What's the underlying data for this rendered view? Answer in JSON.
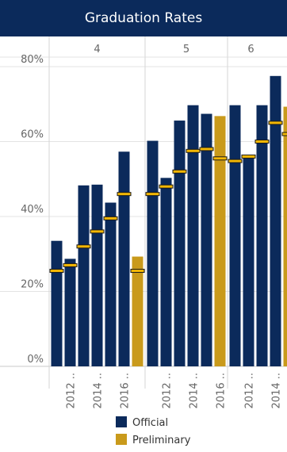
{
  "title": "Graduation Rates",
  "colors": {
    "official": "#0b2a5b",
    "preliminary": "#c99a1b",
    "marker_fill": "#f2b705",
    "grid": "#e3e3e3",
    "axis_text": "#666666"
  },
  "legend": [
    {
      "label": "Official",
      "color": "#0b2a5b"
    },
    {
      "label": "Preliminary",
      "color": "#c99a1b"
    }
  ],
  "chart_data": {
    "type": "bar",
    "title": "Graduation Rates",
    "ylim": [
      0,
      80
    ],
    "yticks": [
      {
        "value": 0,
        "label": "0%"
      },
      {
        "value": 20,
        "label": "20%"
      },
      {
        "value": 40,
        "label": "40%"
      },
      {
        "value": 60,
        "label": "60%"
      },
      {
        "value": 80,
        "label": "80%"
      }
    ],
    "groups": [
      "4",
      "5",
      "6"
    ],
    "x_tick_labels": [
      {
        "group": "4",
        "label": "2012 ..",
        "bar": 1
      },
      {
        "group": "4",
        "label": "2014 ..",
        "bar": 3
      },
      {
        "group": "4",
        "label": "2016 ..",
        "bar": 5
      },
      {
        "group": "5",
        "label": "2012 ..",
        "bar": 1
      },
      {
        "group": "5",
        "label": "2014 ..",
        "bar": 3
      },
      {
        "group": "5",
        "label": "2016 ..",
        "bar": 5
      },
      {
        "group": "6",
        "label": "2012 ..",
        "bar": 1
      },
      {
        "group": "6",
        "label": "2014 ..",
        "bar": 3
      }
    ],
    "series": [
      {
        "name": "Official",
        "color": "#0b2a5b"
      },
      {
        "name": "Preliminary",
        "color": "#c99a1b"
      }
    ],
    "bars": [
      {
        "group": "4",
        "series": "Official",
        "value": 33.5,
        "marker": 25.5
      },
      {
        "group": "4",
        "series": "Official",
        "value": 28.7,
        "marker": 27.0
      },
      {
        "group": "4",
        "series": "Official",
        "value": 48.3,
        "marker": 32.0
      },
      {
        "group": "4",
        "series": "Official",
        "value": 48.5,
        "marker": 36.0
      },
      {
        "group": "4",
        "series": "Official",
        "value": 43.7,
        "marker": 39.5
      },
      {
        "group": "4",
        "series": "Official",
        "value": 57.3,
        "marker": 46.0
      },
      {
        "group": "4",
        "series": "Preliminary",
        "value": 29.3,
        "marker": 25.5
      },
      {
        "group": "5",
        "series": "Official",
        "value": 60.2,
        "marker": 46.0
      },
      {
        "group": "5",
        "series": "Official",
        "value": 50.3,
        "marker": 48.0
      },
      {
        "group": "5",
        "series": "Official",
        "value": 65.6,
        "marker": 52.0
      },
      {
        "group": "5",
        "series": "Official",
        "value": 69.7,
        "marker": 57.5
      },
      {
        "group": "5",
        "series": "Official",
        "value": 67.4,
        "marker": 58.0
      },
      {
        "group": "5",
        "series": "Preliminary",
        "value": 66.8,
        "marker": 55.5
      },
      {
        "group": "6",
        "series": "Official",
        "value": 69.7,
        "marker": 54.8
      },
      {
        "group": "6",
        "series": "Official",
        "value": 56.5,
        "marker": 56.0
      },
      {
        "group": "6",
        "series": "Official",
        "value": 69.7,
        "marker": 60.0
      },
      {
        "group": "6",
        "series": "Official",
        "value": 77.5,
        "marker": 65.0
      },
      {
        "group": "6",
        "series": "Preliminary",
        "value": 69.3,
        "marker": 62.0
      }
    ]
  }
}
